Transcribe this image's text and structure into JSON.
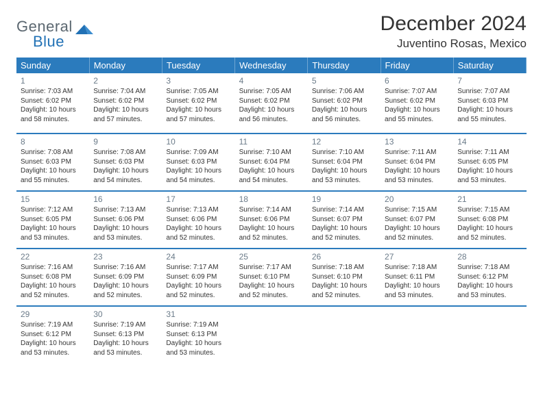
{
  "logo": {
    "word1": "General",
    "word2": "Blue"
  },
  "title": "December 2024",
  "location": "Juventino Rosas, Mexico",
  "accent_color": "#2b7bbd",
  "shaded_bg": "#e9eaec",
  "text_color": "#333333",
  "day_headers": [
    "Sunday",
    "Monday",
    "Tuesday",
    "Wednesday",
    "Thursday",
    "Friday",
    "Saturday"
  ],
  "weeks": [
    [
      {
        "n": "1",
        "shaded": true,
        "sunrise": "Sunrise: 7:03 AM",
        "sunset": "Sunset: 6:02 PM",
        "day1": "Daylight: 10 hours",
        "day2": "and 58 minutes."
      },
      {
        "n": "2",
        "sunrise": "Sunrise: 7:04 AM",
        "sunset": "Sunset: 6:02 PM",
        "day1": "Daylight: 10 hours",
        "day2": "and 57 minutes."
      },
      {
        "n": "3",
        "sunrise": "Sunrise: 7:05 AM",
        "sunset": "Sunset: 6:02 PM",
        "day1": "Daylight: 10 hours",
        "day2": "and 57 minutes."
      },
      {
        "n": "4",
        "sunrise": "Sunrise: 7:05 AM",
        "sunset": "Sunset: 6:02 PM",
        "day1": "Daylight: 10 hours",
        "day2": "and 56 minutes."
      },
      {
        "n": "5",
        "sunrise": "Sunrise: 7:06 AM",
        "sunset": "Sunset: 6:02 PM",
        "day1": "Daylight: 10 hours",
        "day2": "and 56 minutes."
      },
      {
        "n": "6",
        "sunrise": "Sunrise: 7:07 AM",
        "sunset": "Sunset: 6:02 PM",
        "day1": "Daylight: 10 hours",
        "day2": "and 55 minutes."
      },
      {
        "n": "7",
        "shaded": true,
        "sunrise": "Sunrise: 7:07 AM",
        "sunset": "Sunset: 6:03 PM",
        "day1": "Daylight: 10 hours",
        "day2": "and 55 minutes."
      }
    ],
    [
      {
        "n": "8",
        "shaded": true,
        "sunrise": "Sunrise: 7:08 AM",
        "sunset": "Sunset: 6:03 PM",
        "day1": "Daylight: 10 hours",
        "day2": "and 55 minutes."
      },
      {
        "n": "9",
        "sunrise": "Sunrise: 7:08 AM",
        "sunset": "Sunset: 6:03 PM",
        "day1": "Daylight: 10 hours",
        "day2": "and 54 minutes."
      },
      {
        "n": "10",
        "sunrise": "Sunrise: 7:09 AM",
        "sunset": "Sunset: 6:03 PM",
        "day1": "Daylight: 10 hours",
        "day2": "and 54 minutes."
      },
      {
        "n": "11",
        "sunrise": "Sunrise: 7:10 AM",
        "sunset": "Sunset: 6:04 PM",
        "day1": "Daylight: 10 hours",
        "day2": "and 54 minutes."
      },
      {
        "n": "12",
        "sunrise": "Sunrise: 7:10 AM",
        "sunset": "Sunset: 6:04 PM",
        "day1": "Daylight: 10 hours",
        "day2": "and 53 minutes."
      },
      {
        "n": "13",
        "sunrise": "Sunrise: 7:11 AM",
        "sunset": "Sunset: 6:04 PM",
        "day1": "Daylight: 10 hours",
        "day2": "and 53 minutes."
      },
      {
        "n": "14",
        "shaded": true,
        "sunrise": "Sunrise: 7:11 AM",
        "sunset": "Sunset: 6:05 PM",
        "day1": "Daylight: 10 hours",
        "day2": "and 53 minutes."
      }
    ],
    [
      {
        "n": "15",
        "shaded": true,
        "sunrise": "Sunrise: 7:12 AM",
        "sunset": "Sunset: 6:05 PM",
        "day1": "Daylight: 10 hours",
        "day2": "and 53 minutes."
      },
      {
        "n": "16",
        "sunrise": "Sunrise: 7:13 AM",
        "sunset": "Sunset: 6:06 PM",
        "day1": "Daylight: 10 hours",
        "day2": "and 53 minutes."
      },
      {
        "n": "17",
        "sunrise": "Sunrise: 7:13 AM",
        "sunset": "Sunset: 6:06 PM",
        "day1": "Daylight: 10 hours",
        "day2": "and 52 minutes."
      },
      {
        "n": "18",
        "sunrise": "Sunrise: 7:14 AM",
        "sunset": "Sunset: 6:06 PM",
        "day1": "Daylight: 10 hours",
        "day2": "and 52 minutes."
      },
      {
        "n": "19",
        "sunrise": "Sunrise: 7:14 AM",
        "sunset": "Sunset: 6:07 PM",
        "day1": "Daylight: 10 hours",
        "day2": "and 52 minutes."
      },
      {
        "n": "20",
        "sunrise": "Sunrise: 7:15 AM",
        "sunset": "Sunset: 6:07 PM",
        "day1": "Daylight: 10 hours",
        "day2": "and 52 minutes."
      },
      {
        "n": "21",
        "shaded": true,
        "sunrise": "Sunrise: 7:15 AM",
        "sunset": "Sunset: 6:08 PM",
        "day1": "Daylight: 10 hours",
        "day2": "and 52 minutes."
      }
    ],
    [
      {
        "n": "22",
        "shaded": true,
        "sunrise": "Sunrise: 7:16 AM",
        "sunset": "Sunset: 6:08 PM",
        "day1": "Daylight: 10 hours",
        "day2": "and 52 minutes."
      },
      {
        "n": "23",
        "sunrise": "Sunrise: 7:16 AM",
        "sunset": "Sunset: 6:09 PM",
        "day1": "Daylight: 10 hours",
        "day2": "and 52 minutes."
      },
      {
        "n": "24",
        "sunrise": "Sunrise: 7:17 AM",
        "sunset": "Sunset: 6:09 PM",
        "day1": "Daylight: 10 hours",
        "day2": "and 52 minutes."
      },
      {
        "n": "25",
        "sunrise": "Sunrise: 7:17 AM",
        "sunset": "Sunset: 6:10 PM",
        "day1": "Daylight: 10 hours",
        "day2": "and 52 minutes."
      },
      {
        "n": "26",
        "sunrise": "Sunrise: 7:18 AM",
        "sunset": "Sunset: 6:10 PM",
        "day1": "Daylight: 10 hours",
        "day2": "and 52 minutes."
      },
      {
        "n": "27",
        "sunrise": "Sunrise: 7:18 AM",
        "sunset": "Sunset: 6:11 PM",
        "day1": "Daylight: 10 hours",
        "day2": "and 53 minutes."
      },
      {
        "n": "28",
        "shaded": true,
        "sunrise": "Sunrise: 7:18 AM",
        "sunset": "Sunset: 6:12 PM",
        "day1": "Daylight: 10 hours",
        "day2": "and 53 minutes."
      }
    ],
    [
      {
        "n": "29",
        "shaded": true,
        "sunrise": "Sunrise: 7:19 AM",
        "sunset": "Sunset: 6:12 PM",
        "day1": "Daylight: 10 hours",
        "day2": "and 53 minutes."
      },
      {
        "n": "30",
        "sunrise": "Sunrise: 7:19 AM",
        "sunset": "Sunset: 6:13 PM",
        "day1": "Daylight: 10 hours",
        "day2": "and 53 minutes."
      },
      {
        "n": "31",
        "sunrise": "Sunrise: 7:19 AM",
        "sunset": "Sunset: 6:13 PM",
        "day1": "Daylight: 10 hours",
        "day2": "and 53 minutes."
      },
      null,
      null,
      null,
      null
    ]
  ]
}
